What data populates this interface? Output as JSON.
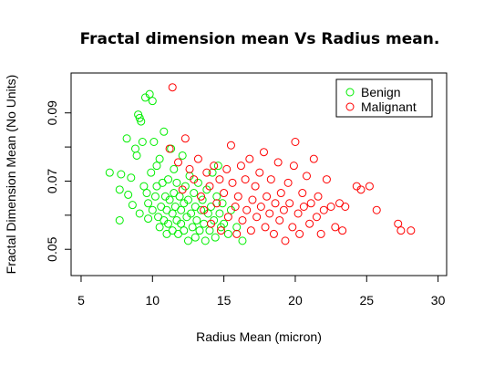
{
  "chart_data": {
    "type": "scatter",
    "title": "Fractal dimension mean Vs Radius mean.",
    "xlabel": "Radius Mean (micron)",
    "ylabel": "Fractal Dimension Mean (No Units)",
    "xlim": [
      4.3,
      30.6
    ],
    "ylim": [
      0.0423,
      0.1017
    ],
    "xticks": [
      5,
      10,
      15,
      20,
      25,
      30
    ],
    "xtick_labels": [
      "5",
      "10",
      "15",
      "20",
      "25",
      "30"
    ],
    "yticks": [
      0.05,
      0.06,
      0.07,
      0.08,
      0.09
    ],
    "ytick_labels": [
      "0.05",
      "",
      "0.07",
      "",
      "0.09"
    ],
    "grid": false,
    "legend_position": "top-right",
    "colors": {
      "Benign": "#00ee00",
      "Malignant": "#ff0000"
    },
    "series": [
      {
        "name": "Benign",
        "color": "#00ee00",
        "points": [
          [
            7.0,
            0.0725
          ],
          [
            7.7,
            0.0585
          ],
          [
            7.7,
            0.0675
          ],
          [
            7.8,
            0.072
          ],
          [
            8.2,
            0.0825
          ],
          [
            8.3,
            0.066
          ],
          [
            8.5,
            0.071
          ],
          [
            8.6,
            0.063
          ],
          [
            8.8,
            0.0795
          ],
          [
            8.9,
            0.0775
          ],
          [
            9.0,
            0.0895
          ],
          [
            9.1,
            0.0885
          ],
          [
            9.1,
            0.0605
          ],
          [
            9.2,
            0.0875
          ],
          [
            9.3,
            0.0815
          ],
          [
            9.4,
            0.0685
          ],
          [
            9.5,
            0.0945
          ],
          [
            9.6,
            0.0665
          ],
          [
            9.7,
            0.059
          ],
          [
            9.7,
            0.0635
          ],
          [
            9.8,
            0.0955
          ],
          [
            9.9,
            0.0725
          ],
          [
            10.0,
            0.0615
          ],
          [
            10.0,
            0.0935
          ],
          [
            10.1,
            0.0815
          ],
          [
            10.2,
            0.0655
          ],
          [
            10.3,
            0.0685
          ],
          [
            10.3,
            0.0745
          ],
          [
            10.4,
            0.0595
          ],
          [
            10.5,
            0.0565
          ],
          [
            10.5,
            0.0765
          ],
          [
            10.6,
            0.0625
          ],
          [
            10.7,
            0.0695
          ],
          [
            10.8,
            0.0585
          ],
          [
            10.8,
            0.0845
          ],
          [
            10.9,
            0.0655
          ],
          [
            11.0,
            0.0615
          ],
          [
            11.0,
            0.0545
          ],
          [
            11.1,
            0.0705
          ],
          [
            11.1,
            0.0575
          ],
          [
            11.2,
            0.0645
          ],
          [
            11.3,
            0.0795
          ],
          [
            11.4,
            0.0605
          ],
          [
            11.4,
            0.0555
          ],
          [
            11.5,
            0.0735
          ],
          [
            11.5,
            0.0665
          ],
          [
            11.6,
            0.0625
          ],
          [
            11.7,
            0.0585
          ],
          [
            11.7,
            0.0695
          ],
          [
            11.8,
            0.0545
          ],
          [
            11.9,
            0.0655
          ],
          [
            12.0,
            0.0615
          ],
          [
            12.0,
            0.0575
          ],
          [
            12.1,
            0.0775
          ],
          [
            12.2,
            0.0635
          ],
          [
            12.2,
            0.0555
          ],
          [
            12.3,
            0.0685
          ],
          [
            12.4,
            0.0595
          ],
          [
            12.5,
            0.0525
          ],
          [
            12.5,
            0.0645
          ],
          [
            12.6,
            0.0715
          ],
          [
            12.7,
            0.0605
          ],
          [
            12.8,
            0.0565
          ],
          [
            12.9,
            0.0665
          ],
          [
            13.0,
            0.0625
          ],
          [
            13.0,
            0.0535
          ],
          [
            13.1,
            0.0585
          ],
          [
            13.2,
            0.0695
          ],
          [
            13.3,
            0.0555
          ],
          [
            13.4,
            0.0615
          ],
          [
            13.5,
            0.0645
          ],
          [
            13.6,
            0.0575
          ],
          [
            13.7,
            0.0525
          ],
          [
            13.8,
            0.0675
          ],
          [
            13.9,
            0.0605
          ],
          [
            14.0,
            0.0555
          ],
          [
            14.1,
            0.0625
          ],
          [
            14.2,
            0.0725
          ],
          [
            14.3,
            0.0585
          ],
          [
            14.4,
            0.0535
          ],
          [
            14.5,
            0.0655
          ],
          [
            14.6,
            0.0745
          ],
          [
            14.7,
            0.0605
          ],
          [
            14.8,
            0.0565
          ],
          [
            14.9,
            0.0635
          ],
          [
            15.0,
            0.0575
          ],
          [
            15.3,
            0.0545
          ],
          [
            15.5,
            0.0615
          ],
          [
            15.9,
            0.0565
          ],
          [
            16.3,
            0.0525
          ]
        ]
      },
      {
        "name": "Malignant",
        "color": "#ff0000",
        "points": [
          [
            11.2,
            0.0795
          ],
          [
            11.4,
            0.0975
          ],
          [
            11.8,
            0.0755
          ],
          [
            12.1,
            0.0675
          ],
          [
            12.3,
            0.0825
          ],
          [
            12.6,
            0.0735
          ],
          [
            12.9,
            0.0705
          ],
          [
            13.2,
            0.0765
          ],
          [
            13.4,
            0.0655
          ],
          [
            13.6,
            0.0615
          ],
          [
            13.8,
            0.0725
          ],
          [
            14.0,
            0.0685
          ],
          [
            14.1,
            0.0575
          ],
          [
            14.3,
            0.0745
          ],
          [
            14.5,
            0.0635
          ],
          [
            14.7,
            0.0705
          ],
          [
            14.8,
            0.0555
          ],
          [
            15.0,
            0.0665
          ],
          [
            15.2,
            0.0735
          ],
          [
            15.3,
            0.0595
          ],
          [
            15.5,
            0.0805
          ],
          [
            15.6,
            0.0695
          ],
          [
            15.8,
            0.0625
          ],
          [
            15.9,
            0.0545
          ],
          [
            16.0,
            0.0655
          ],
          [
            16.2,
            0.0745
          ],
          [
            16.3,
            0.0585
          ],
          [
            16.5,
            0.0705
          ],
          [
            16.6,
            0.0615
          ],
          [
            16.8,
            0.0765
          ],
          [
            16.9,
            0.0555
          ],
          [
            17.0,
            0.0645
          ],
          [
            17.2,
            0.0685
          ],
          [
            17.3,
            0.0595
          ],
          [
            17.5,
            0.0725
          ],
          [
            17.6,
            0.0625
          ],
          [
            17.8,
            0.0785
          ],
          [
            17.9,
            0.0565
          ],
          [
            18.0,
            0.0655
          ],
          [
            18.2,
            0.0605
          ],
          [
            18.3,
            0.0705
          ],
          [
            18.5,
            0.0545
          ],
          [
            18.6,
            0.0635
          ],
          [
            18.8,
            0.0755
          ],
          [
            18.9,
            0.0585
          ],
          [
            19.0,
            0.0665
          ],
          [
            19.2,
            0.0615
          ],
          [
            19.3,
            0.0525
          ],
          [
            19.5,
            0.0695
          ],
          [
            19.6,
            0.0635
          ],
          [
            19.8,
            0.0565
          ],
          [
            19.9,
            0.0745
          ],
          [
            20.0,
            0.0815
          ],
          [
            20.2,
            0.0605
          ],
          [
            20.3,
            0.0545
          ],
          [
            20.5,
            0.0665
          ],
          [
            20.6,
            0.0625
          ],
          [
            20.8,
            0.0715
          ],
          [
            21.0,
            0.0575
          ],
          [
            21.1,
            0.0635
          ],
          [
            21.3,
            0.0765
          ],
          [
            21.5,
            0.0595
          ],
          [
            21.6,
            0.0655
          ],
          [
            21.8,
            0.0545
          ],
          [
            22.0,
            0.0615
          ],
          [
            22.2,
            0.0705
          ],
          [
            22.5,
            0.0625
          ],
          [
            22.8,
            0.0565
          ],
          [
            23.1,
            0.0635
          ],
          [
            23.3,
            0.0555
          ],
          [
            23.5,
            0.0625
          ],
          [
            24.3,
            0.0685
          ],
          [
            24.6,
            0.0675
          ],
          [
            25.2,
            0.0685
          ],
          [
            25.7,
            0.0615
          ],
          [
            27.2,
            0.0575
          ],
          [
            27.4,
            0.0555
          ],
          [
            28.1,
            0.0555
          ]
        ]
      }
    ]
  }
}
